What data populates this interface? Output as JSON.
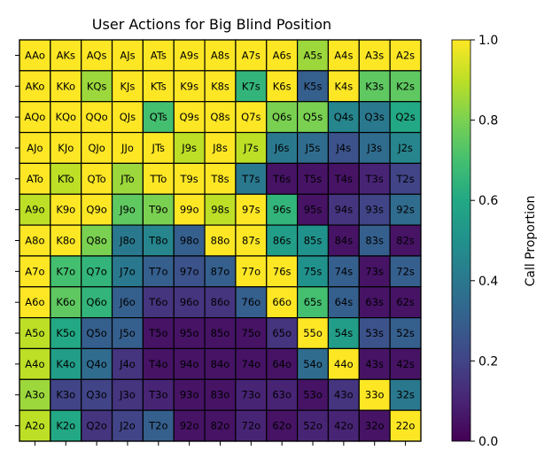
{
  "chart_data": {
    "type": "heatmap",
    "title": "User Actions for Big Blind Position",
    "colorbar": {
      "label": "Call Proportion",
      "range": [
        0.0,
        1.0
      ],
      "ticks": [
        "0.0",
        "0.2",
        "0.4",
        "0.6",
        "0.8",
        "1.0"
      ],
      "colormap": "viridis"
    },
    "rows": [
      [
        {
          "label": "AAo",
          "value": 1.0
        },
        {
          "label": "AKs",
          "value": 1.0
        },
        {
          "label": "AQs",
          "value": 1.0
        },
        {
          "label": "AJs",
          "value": 1.0
        },
        {
          "label": "ATs",
          "value": 1.0
        },
        {
          "label": "A9s",
          "value": 1.0
        },
        {
          "label": "A8s",
          "value": 1.0
        },
        {
          "label": "A7s",
          "value": 1.0
        },
        {
          "label": "A6s",
          "value": 1.0
        },
        {
          "label": "A5s",
          "value": 0.85
        },
        {
          "label": "A4s",
          "value": 1.0
        },
        {
          "label": "A3s",
          "value": 1.0
        },
        {
          "label": "A2s",
          "value": 1.0
        }
      ],
      [
        {
          "label": "AKo",
          "value": 1.0
        },
        {
          "label": "KKo",
          "value": 1.0
        },
        {
          "label": "KQs",
          "value": 0.85
        },
        {
          "label": "KJs",
          "value": 1.0
        },
        {
          "label": "KTs",
          "value": 1.0
        },
        {
          "label": "K9s",
          "value": 1.0
        },
        {
          "label": "K8s",
          "value": 1.0
        },
        {
          "label": "K7s",
          "value": 0.65
        },
        {
          "label": "K6s",
          "value": 1.0
        },
        {
          "label": "K5s",
          "value": 0.3
        },
        {
          "label": "K4s",
          "value": 1.0
        },
        {
          "label": "K3s",
          "value": 0.75
        },
        {
          "label": "K2s",
          "value": 0.75
        }
      ],
      [
        {
          "label": "AQo",
          "value": 1.0
        },
        {
          "label": "KQo",
          "value": 1.0
        },
        {
          "label": "QQo",
          "value": 1.0
        },
        {
          "label": "QJs",
          "value": 1.0
        },
        {
          "label": "QTs",
          "value": 0.7
        },
        {
          "label": "Q9s",
          "value": 1.0
        },
        {
          "label": "Q8s",
          "value": 1.0
        },
        {
          "label": "Q7s",
          "value": 1.0
        },
        {
          "label": "Q6s",
          "value": 0.8
        },
        {
          "label": "Q5s",
          "value": 0.8
        },
        {
          "label": "Q4s",
          "value": 0.45
        },
        {
          "label": "Q3s",
          "value": 0.4
        },
        {
          "label": "Q2s",
          "value": 0.6
        }
      ],
      [
        {
          "label": "AJo",
          "value": 1.0
        },
        {
          "label": "KJo",
          "value": 1.0
        },
        {
          "label": "QJo",
          "value": 1.0
        },
        {
          "label": "JJo",
          "value": 1.0
        },
        {
          "label": "JTs",
          "value": 1.0
        },
        {
          "label": "J9s",
          "value": 0.9
        },
        {
          "label": "J8s",
          "value": 1.0
        },
        {
          "label": "J7s",
          "value": 0.9
        },
        {
          "label": "J6s",
          "value": 0.4
        },
        {
          "label": "J5s",
          "value": 0.35
        },
        {
          "label": "J4s",
          "value": 0.25
        },
        {
          "label": "J3s",
          "value": 0.35
        },
        {
          "label": "J2s",
          "value": 0.45
        }
      ],
      [
        {
          "label": "ATo",
          "value": 1.0
        },
        {
          "label": "KTo",
          "value": 0.9
        },
        {
          "label": "QTo",
          "value": 1.0
        },
        {
          "label": "JTo",
          "value": 0.85
        },
        {
          "label": "TTo",
          "value": 1.0
        },
        {
          "label": "T9s",
          "value": 1.0
        },
        {
          "label": "T8s",
          "value": 1.0
        },
        {
          "label": "T7s",
          "value": 0.4
        },
        {
          "label": "T6s",
          "value": 0.05
        },
        {
          "label": "T5s",
          "value": 0.05
        },
        {
          "label": "T4s",
          "value": 0.05
        },
        {
          "label": "T3s",
          "value": 0.1
        },
        {
          "label": "T2s",
          "value": 0.2
        }
      ],
      [
        {
          "label": "A9o",
          "value": 0.9
        },
        {
          "label": "K9o",
          "value": 1.0
        },
        {
          "label": "Q9o",
          "value": 1.0
        },
        {
          "label": "J9o",
          "value": 0.75
        },
        {
          "label": "T9o",
          "value": 0.8
        },
        {
          "label": "99o",
          "value": 1.0
        },
        {
          "label": "98s",
          "value": 0.9
        },
        {
          "label": "97s",
          "value": 1.0
        },
        {
          "label": "96s",
          "value": 0.65
        },
        {
          "label": "95s",
          "value": 0.05
        },
        {
          "label": "94s",
          "value": 0.15
        },
        {
          "label": "93s",
          "value": 0.2
        },
        {
          "label": "92s",
          "value": 0.35
        }
      ],
      [
        {
          "label": "A8o",
          "value": 1.0
        },
        {
          "label": "K8o",
          "value": 1.0
        },
        {
          "label": "Q8o",
          "value": 0.8
        },
        {
          "label": "J8o",
          "value": 0.4
        },
        {
          "label": "T8o",
          "value": 0.45
        },
        {
          "label": "98o",
          "value": 0.3
        },
        {
          "label": "88o",
          "value": 1.0
        },
        {
          "label": "87s",
          "value": 1.0
        },
        {
          "label": "86s",
          "value": 0.55
        },
        {
          "label": "85s",
          "value": 0.5
        },
        {
          "label": "84s",
          "value": 0.05
        },
        {
          "label": "83s",
          "value": 0.3
        },
        {
          "label": "82s",
          "value": 0.05
        }
      ],
      [
        {
          "label": "A7o",
          "value": 1.0
        },
        {
          "label": "K7o",
          "value": 0.7
        },
        {
          "label": "Q7o",
          "value": 0.65
        },
        {
          "label": "J7o",
          "value": 0.4
        },
        {
          "label": "T7o",
          "value": 0.3
        },
        {
          "label": "97o",
          "value": 0.25
        },
        {
          "label": "87o",
          "value": 0.3
        },
        {
          "label": "77o",
          "value": 1.0
        },
        {
          "label": "76s",
          "value": 1.0
        },
        {
          "label": "75s",
          "value": 0.5
        },
        {
          "label": "74s",
          "value": 0.3
        },
        {
          "label": "73s",
          "value": 0.05
        },
        {
          "label": "72s",
          "value": 0.3
        }
      ],
      [
        {
          "label": "A6o",
          "value": 1.0
        },
        {
          "label": "K6o",
          "value": 0.75
        },
        {
          "label": "Q6o",
          "value": 0.65
        },
        {
          "label": "J6o",
          "value": 0.3
        },
        {
          "label": "T6o",
          "value": 0.15
        },
        {
          "label": "96o",
          "value": 0.15
        },
        {
          "label": "86o",
          "value": 0.15
        },
        {
          "label": "76o",
          "value": 0.3
        },
        {
          "label": "66o",
          "value": 1.0
        },
        {
          "label": "65s",
          "value": 0.7
        },
        {
          "label": "64s",
          "value": 0.3
        },
        {
          "label": "63s",
          "value": 0.05
        },
        {
          "label": "62s",
          "value": 0.05
        }
      ],
      [
        {
          "label": "A5o",
          "value": 0.9
        },
        {
          "label": "K5o",
          "value": 0.6
        },
        {
          "label": "Q5o",
          "value": 0.3
        },
        {
          "label": "J5o",
          "value": 0.3
        },
        {
          "label": "T5o",
          "value": 0.05
        },
        {
          "label": "95o",
          "value": 0.05
        },
        {
          "label": "85o",
          "value": 0.05
        },
        {
          "label": "75o",
          "value": 0.05
        },
        {
          "label": "65o",
          "value": 0.15
        },
        {
          "label": "55o",
          "value": 1.0
        },
        {
          "label": "54s",
          "value": 0.55
        },
        {
          "label": "53s",
          "value": 0.25
        },
        {
          "label": "52s",
          "value": 0.3
        }
      ],
      [
        {
          "label": "A4o",
          "value": 0.9
        },
        {
          "label": "K4o",
          "value": 0.55
        },
        {
          "label": "Q4o",
          "value": 0.35
        },
        {
          "label": "J4o",
          "value": 0.15
        },
        {
          "label": "T4o",
          "value": 0.05
        },
        {
          "label": "94o",
          "value": 0.05
        },
        {
          "label": "84o",
          "value": 0.05
        },
        {
          "label": "74o",
          "value": 0.05
        },
        {
          "label": "64o",
          "value": 0.05
        },
        {
          "label": "54o",
          "value": 0.35
        },
        {
          "label": "44o",
          "value": 1.0
        },
        {
          "label": "43s",
          "value": 0.05
        },
        {
          "label": "42s",
          "value": 0.05
        }
      ],
      [
        {
          "label": "A3o",
          "value": 0.85
        },
        {
          "label": "K3o",
          "value": 0.2
        },
        {
          "label": "Q3o",
          "value": 0.2
        },
        {
          "label": "J3o",
          "value": 0.15
        },
        {
          "label": "T3o",
          "value": 0.1
        },
        {
          "label": "93o",
          "value": 0.05
        },
        {
          "label": "83o",
          "value": 0.05
        },
        {
          "label": "73o",
          "value": 0.1
        },
        {
          "label": "63o",
          "value": 0.1
        },
        {
          "label": "53o",
          "value": 0.05
        },
        {
          "label": "43o",
          "value": 0.15
        },
        {
          "label": "33o",
          "value": 1.0
        },
        {
          "label": "32s",
          "value": 0.4
        }
      ],
      [
        {
          "label": "A2o",
          "value": 0.9
        },
        {
          "label": "K2o",
          "value": 0.6
        },
        {
          "label": "Q2o",
          "value": 0.15
        },
        {
          "label": "J2o",
          "value": 0.2
        },
        {
          "label": "T2o",
          "value": 0.3
        },
        {
          "label": "92o",
          "value": 0.05
        },
        {
          "label": "82o",
          "value": 0.05
        },
        {
          "label": "72o",
          "value": 0.1
        },
        {
          "label": "62o",
          "value": 0.05
        },
        {
          "label": "52o",
          "value": 0.1
        },
        {
          "label": "42o",
          "value": 0.1
        },
        {
          "label": "32o",
          "value": 0.05
        },
        {
          "label": "22o",
          "value": 1.0
        }
      ]
    ]
  }
}
